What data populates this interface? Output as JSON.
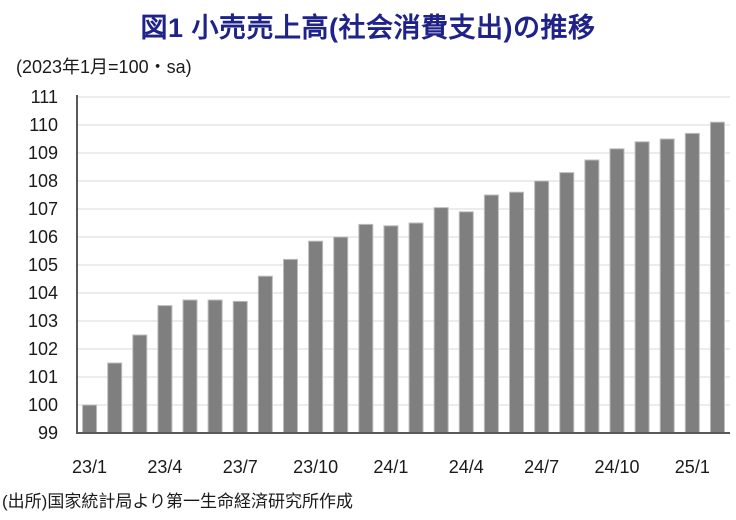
{
  "header": {
    "title": "図1 小売売上高(社会消費支出)の推移",
    "subtitle": "(2023年1月=100・sa)"
  },
  "chart_data": {
    "type": "bar",
    "title": "図1 小売売上高(社会消費支出)の推移",
    "unit_note": "(2023年1月=100・sa)",
    "categories": [
      "23/1",
      "23/2",
      "23/3",
      "23/4",
      "23/5",
      "23/6",
      "23/7",
      "23/8",
      "23/9",
      "23/10",
      "23/11",
      "23/12",
      "24/1",
      "24/2",
      "24/3",
      "24/4",
      "24/5",
      "24/6",
      "24/7",
      "24/8",
      "24/9",
      "24/10",
      "24/11",
      "24/12",
      "25/1",
      "25/2"
    ],
    "values": [
      100.0,
      101.5,
      102.5,
      103.55,
      103.75,
      103.75,
      103.7,
      104.6,
      105.2,
      105.85,
      106.0,
      106.45,
      106.4,
      106.5,
      107.05,
      106.9,
      107.5,
      107.6,
      108.0,
      108.3,
      108.75,
      109.15,
      109.4,
      109.5,
      109.7,
      110.1
    ],
    "ylim": [
      99,
      111
    ],
    "yticks": [
      99,
      100,
      101,
      102,
      103,
      104,
      105,
      106,
      107,
      108,
      109,
      110,
      111
    ],
    "xtick_every": 3,
    "xtick_labels_visible": [
      "23/1",
      "23/4",
      "23/7",
      "23/10",
      "24/1",
      "24/4",
      "24/7",
      "24/10",
      "25/1"
    ],
    "grid": true,
    "legend": "none"
  },
  "footer": {
    "source": "(出所)国家統計局より第一生命経済研究所作成"
  },
  "colors": {
    "title": "#1e2289",
    "bar": "#7f7f7f",
    "bar_edge": "#bdbdbd",
    "grid": "#d9d9d9",
    "axis": "#595959",
    "label": "#1a1a1a"
  }
}
